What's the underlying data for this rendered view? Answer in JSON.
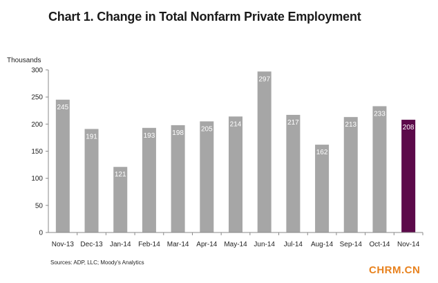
{
  "chart_data": {
    "type": "bar",
    "title": "Chart 1. Change in Total Nonfarm Private Employment",
    "ylabel": "Thousands",
    "xlabel": "",
    "categories": [
      "Nov-13",
      "Dec-13",
      "Jan-14",
      "Feb-14",
      "Mar-14",
      "Apr-14",
      "May-14",
      "Jun-14",
      "Jul-14",
      "Aug-14",
      "Sep-14",
      "Oct-14",
      "Nov-14"
    ],
    "values": [
      245,
      191,
      121,
      193,
      198,
      205,
      214,
      297,
      217,
      162,
      213,
      233,
      208
    ],
    "ylim": [
      0,
      300
    ],
    "yticks": [
      0,
      50,
      100,
      150,
      200,
      250,
      300
    ],
    "grid": false,
    "legend": "none",
    "colors": {
      "bar": "#a6a6a6",
      "highlight": "#5c0a4a",
      "axis": "#888888"
    },
    "highlight_category": "Nov-14"
  },
  "source_note": "Sources: ADP, LLC; Moody's Analytics",
  "watermark": "CHRM.CN"
}
